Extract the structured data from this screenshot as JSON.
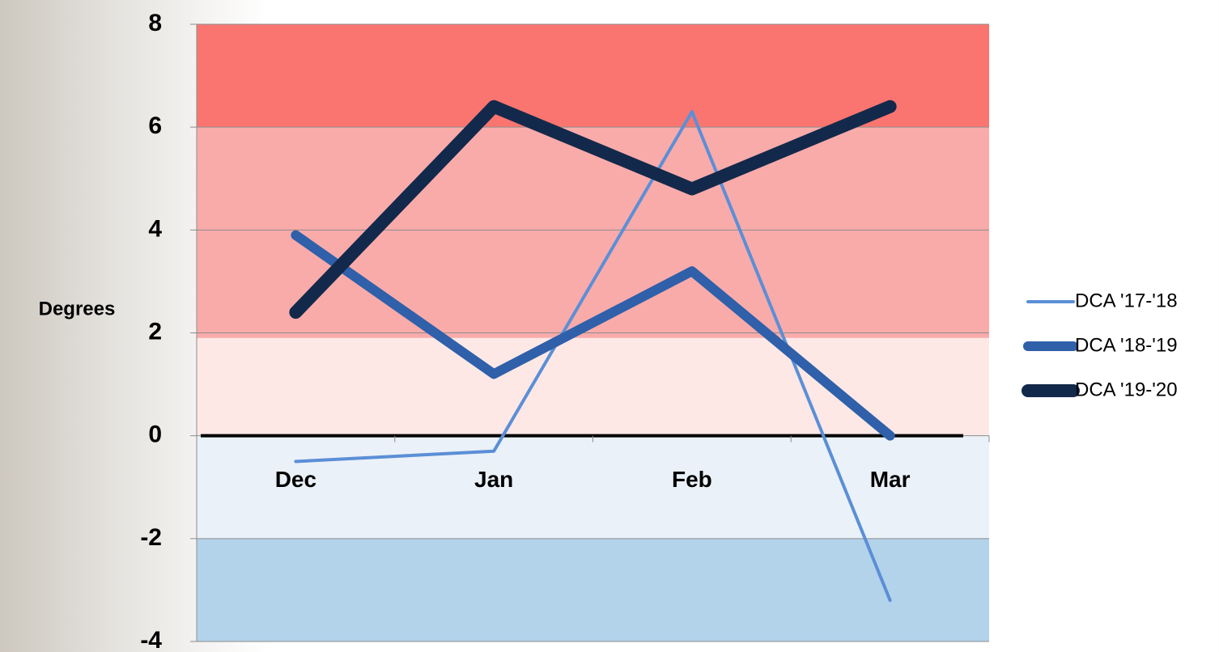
{
  "chart_data": {
    "type": "line",
    "y_label": "Degrees",
    "categories": [
      "Dec",
      "Jan",
      "Feb",
      "Mar"
    ],
    "series": [
      {
        "name": "DCA '17-'18",
        "color": "#5b8fd6",
        "width": 4,
        "values": [
          -0.5,
          -0.3,
          6.3,
          -3.2
        ]
      },
      {
        "name": "DCA '18-'19",
        "color": "#2f60a9",
        "width": 12,
        "values": [
          3.9,
          1.2,
          3.2,
          0
        ]
      },
      {
        "name": "DCA '19-'20",
        "color": "#13294b",
        "width": 16,
        "values": [
          2.4,
          6.4,
          4.8,
          6.4
        ]
      }
    ],
    "ylim": [
      -4,
      8
    ],
    "yticks": [
      -4,
      -2,
      0,
      2,
      4,
      6,
      8
    ],
    "grid": true,
    "bands": [
      {
        "from": 6,
        "to": 8,
        "color": "#fa756f"
      },
      {
        "from": 1.9,
        "to": 6,
        "color": "#f9abaa"
      },
      {
        "from": 0,
        "to": 1.9,
        "color": "#fde8e6"
      },
      {
        "from": -2,
        "to": 0,
        "color": "#eaf1f8"
      },
      {
        "from": -4,
        "to": -2,
        "color": "#b3d3eb"
      }
    ],
    "legend": "right"
  }
}
